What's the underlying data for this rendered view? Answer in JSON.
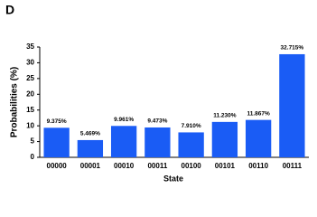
{
  "chart_data": {
    "type": "bar",
    "title": "D",
    "x_label": "State",
    "y_label": "Probabilities (%)",
    "categories": [
      "00000",
      "00001",
      "00010",
      "00011",
      "00100",
      "00101",
      "00110",
      "00111"
    ],
    "values": [
      9.375,
      5.469,
      9.961,
      9.473,
      7.91,
      11.23,
      11.867,
      32.715
    ],
    "value_labels": [
      "9.375%",
      "5.469%",
      "9.961%",
      "9.473%",
      "7.910%",
      "11.230%",
      "11.867%",
      "32.715%"
    ],
    "color": "#1a5cf5",
    "ylim": [
      0,
      35
    ],
    "yticks": [
      0,
      5,
      10,
      15,
      20,
      25,
      30,
      35
    ],
    "grid": false
  }
}
